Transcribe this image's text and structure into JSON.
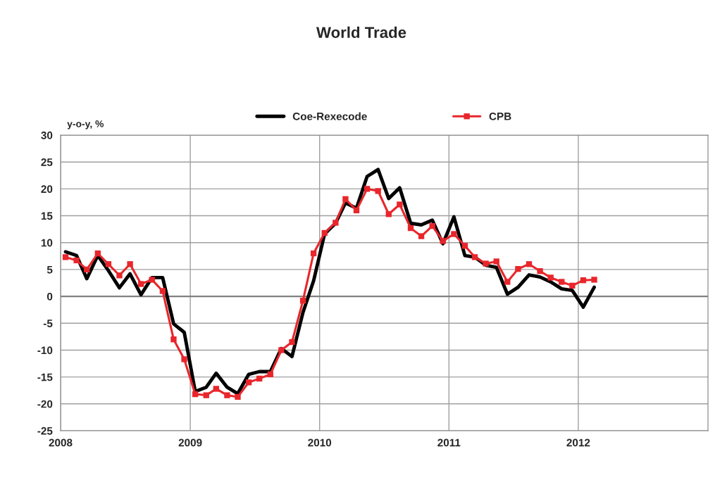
{
  "chart_data": {
    "type": "line",
    "title": "World Trade",
    "ylabel": "y-o-y, %",
    "x": [
      "2008-01-15",
      "2008-02-15",
      "2008-03-15",
      "2008-04-15",
      "2008-05-15",
      "2008-06-15",
      "2008-07-15",
      "2008-08-15",
      "2008-09-15",
      "2008-10-15",
      "2008-11-15",
      "2008-12-15",
      "2009-01-15",
      "2009-02-15",
      "2009-03-15",
      "2009-04-15",
      "2009-05-15",
      "2009-06-15",
      "2009-07-15",
      "2009-08-15",
      "2009-09-15",
      "2009-10-15",
      "2009-11-15",
      "2009-12-15",
      "2010-01-15",
      "2010-02-15",
      "2010-03-15",
      "2010-04-15",
      "2010-05-15",
      "2010-06-15",
      "2010-07-15",
      "2010-08-15",
      "2010-09-15",
      "2010-10-15",
      "2010-11-15",
      "2010-12-15",
      "2011-01-15",
      "2011-02-15",
      "2011-03-15",
      "2011-04-15",
      "2011-05-15",
      "2011-06-15",
      "2011-07-15",
      "2011-08-15",
      "2011-09-15",
      "2011-10-15",
      "2011-11-15",
      "2011-12-15",
      "2012-01-15",
      "2012-02-15"
    ],
    "series": [
      {
        "name": "Coe-Rexecode",
        "color": "#000000",
        "marker": "none",
        "values": [
          8.3,
          7.6,
          3.3,
          7.6,
          4.8,
          1.6,
          4.2,
          0.3,
          3.5,
          3.5,
          -5.1,
          -6.7,
          -17.7,
          -16.9,
          -14.3,
          -16.9,
          -18.1,
          -14.5,
          -14.0,
          -14.0,
          -9.7,
          -11.2,
          -3.0,
          2.9,
          11.6,
          13.6,
          17.4,
          16.4,
          22.3,
          23.6,
          18.2,
          20.2,
          13.6,
          13.3,
          14.2,
          9.8,
          14.8,
          7.6,
          7.3,
          5.8,
          5.4,
          0.4,
          1.7,
          4.0,
          3.6,
          2.7,
          1.4,
          1.1,
          -2.0,
          1.7
        ]
      },
      {
        "name": "CPB",
        "color": "#e8262b",
        "marker": "square",
        "values": [
          7.3,
          6.7,
          5.0,
          8.0,
          6.0,
          3.9,
          6.0,
          2.3,
          3.1,
          1.0,
          -8.0,
          -11.7,
          -18.2,
          -18.4,
          -17.2,
          -18.4,
          -18.7,
          -16.0,
          -15.3,
          -14.5,
          -10.0,
          -8.5,
          -0.8,
          8.0,
          11.8,
          13.7,
          18.1,
          16.0,
          20.0,
          19.6,
          15.3,
          17.1,
          12.7,
          11.2,
          13.1,
          10.3,
          11.6,
          9.4,
          7.3,
          6.1,
          6.5,
          2.7,
          5.1,
          6.0,
          4.7,
          3.5,
          2.7,
          2.0,
          3.0,
          3.1
        ]
      }
    ],
    "xlim": [
      "2008-01-01",
      "2013-01-01"
    ],
    "xticks": [
      {
        "value": "2008-01-01",
        "label": "2008"
      },
      {
        "value": "2009-01-01",
        "label": "2009"
      },
      {
        "value": "2010-01-01",
        "label": "2010"
      },
      {
        "value": "2011-01-01",
        "label": "2011"
      },
      {
        "value": "2012-01-01",
        "label": "2012"
      }
    ],
    "ylim": [
      -25,
      30
    ],
    "yticks": [
      -25,
      -20,
      -15,
      -10,
      -5,
      0,
      5,
      10,
      15,
      20,
      25,
      30
    ],
    "grid": true,
    "legend": "top"
  }
}
